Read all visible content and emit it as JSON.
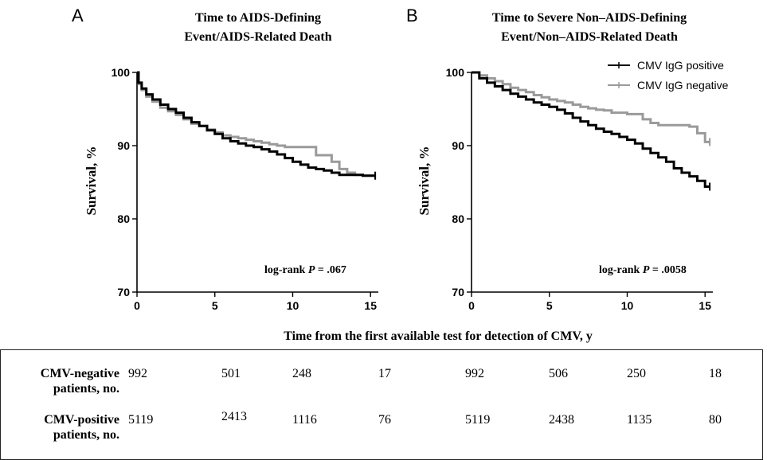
{
  "chart_data": [
    {
      "type": "line",
      "panel_label": "A",
      "title_line1": "Time to AIDS-Defining",
      "title_line2": "Event/AIDS-Related Death",
      "ylabel": "Survival, %",
      "xlabel": "Time from the first available test for detection of CMV, y",
      "xlim": [
        0,
        15.5
      ],
      "ylim": [
        70,
        100
      ],
      "xticks": [
        0,
        5,
        10,
        15
      ],
      "yticks": [
        70,
        80,
        90,
        100
      ],
      "grid": false,
      "annotation_prefix": "log-rank ",
      "annotation_p": "P",
      "annotation_suffix": " = .067",
      "series": [
        {
          "name": "CMV IgG positive",
          "color": "#000000",
          "x": [
            0,
            0.1,
            0.3,
            0.6,
            1,
            1.5,
            2,
            2.5,
            3,
            3.5,
            4,
            4.5,
            5,
            5.5,
            6,
            6.5,
            7,
            7.5,
            8,
            8.5,
            9,
            9.5,
            10,
            10.5,
            11,
            11.5,
            12,
            12.5,
            13,
            13.5,
            14,
            14.5,
            15.3
          ],
          "y": [
            100,
            98.6,
            97.8,
            97,
            96.3,
            95.6,
            95,
            94.5,
            93.8,
            93.2,
            92.7,
            92.1,
            91.6,
            91,
            90.6,
            90.3,
            90,
            89.8,
            89.5,
            89.2,
            88.8,
            88.3,
            87.8,
            87.4,
            87,
            86.8,
            86.6,
            86.3,
            86,
            86,
            86,
            85.9,
            85.9
          ]
        },
        {
          "name": "CMV IgG negative",
          "color": "#9a9a9a",
          "x": [
            0,
            0.1,
            0.3,
            0.6,
            1,
            1.5,
            2,
            2.5,
            3,
            3.5,
            4,
            4.5,
            5,
            5.5,
            6,
            6.5,
            7,
            7.5,
            8,
            8.5,
            9,
            9.5,
            10,
            10.5,
            11,
            11.5,
            12,
            12.5,
            13,
            13.5,
            14,
            14.5,
            15.3
          ],
          "y": [
            100,
            98.4,
            97.6,
            96.7,
            96,
            95.2,
            94.7,
            94.2,
            93.6,
            93,
            92.7,
            92.2,
            91.8,
            91.4,
            91.2,
            91,
            90.8,
            90.6,
            90.4,
            90.2,
            90,
            89.8,
            89.8,
            89.8,
            89.8,
            88.7,
            88.7,
            87.8,
            86.8,
            86.3,
            86,
            85.9,
            85.9
          ]
        }
      ]
    },
    {
      "type": "line",
      "panel_label": "B",
      "title_line1": "Time to Severe Non–AIDS-Defining",
      "title_line2": "Event/Non–AIDS-Related Death",
      "ylabel": "Survival, %",
      "xlabel": "Time from the first available test for detection of CMV, y",
      "xlim": [
        0,
        15.5
      ],
      "ylim": [
        70,
        100
      ],
      "xticks": [
        0,
        5,
        10,
        15
      ],
      "yticks": [
        70,
        80,
        90,
        100
      ],
      "grid": false,
      "legend_position": "top-right",
      "annotation_prefix": "log-rank ",
      "annotation_p": "P",
      "annotation_suffix": " = .0058",
      "series": [
        {
          "name": "CMV IgG positive",
          "color": "#000000",
          "x": [
            0,
            0.5,
            1,
            1.5,
            2,
            2.5,
            3,
            3.5,
            4,
            4.5,
            5,
            5.5,
            6,
            6.5,
            7,
            7.5,
            8,
            8.5,
            9,
            9.5,
            10,
            10.5,
            11,
            11.5,
            12,
            12.5,
            13,
            13.5,
            14,
            14.5,
            15,
            15.3
          ],
          "y": [
            100,
            99.2,
            98.6,
            98.1,
            97.6,
            97.1,
            96.7,
            96.3,
            95.9,
            95.6,
            95.3,
            94.9,
            94.4,
            93.8,
            93.3,
            92.8,
            92.3,
            91.9,
            91.6,
            91.2,
            90.8,
            90.3,
            89.6,
            89,
            88.4,
            87.8,
            86.9,
            86.3,
            85.8,
            85.2,
            84.4,
            84.4
          ]
        },
        {
          "name": "CMV IgG negative",
          "color": "#9a9a9a",
          "x": [
            0,
            0.5,
            1,
            1.5,
            2,
            2.5,
            3,
            3.5,
            4,
            4.5,
            5,
            5.5,
            6,
            6.5,
            7,
            7.5,
            8,
            8.5,
            9,
            9.5,
            10,
            10.5,
            11,
            11.5,
            12,
            12.5,
            13,
            13.5,
            14,
            14.5,
            15,
            15.3
          ],
          "y": [
            100,
            99.6,
            99.2,
            98.8,
            98.4,
            97.9,
            97.6,
            97.3,
            96.9,
            96.6,
            96.3,
            96.1,
            95.9,
            95.6,
            95.3,
            95.1,
            94.9,
            94.8,
            94.5,
            94.5,
            94.3,
            94.3,
            93.6,
            93.1,
            92.8,
            92.8,
            92.8,
            92.8,
            92.6,
            91.7,
            90.5,
            90.5
          ]
        }
      ]
    }
  ],
  "risk_table": {
    "rows": [
      {
        "label_line1": "CMV-negative",
        "label_line2": "patients, no.",
        "values": [
          "992",
          "501",
          "248",
          "17",
          "992",
          "506",
          "250",
          "18"
        ]
      },
      {
        "label_line1": "CMV-positive",
        "label_line2": "patients, no.",
        "values": [
          "5119",
          "2413",
          "1116",
          "76",
          "5119",
          "2438",
          "1135",
          "80"
        ]
      }
    ]
  }
}
